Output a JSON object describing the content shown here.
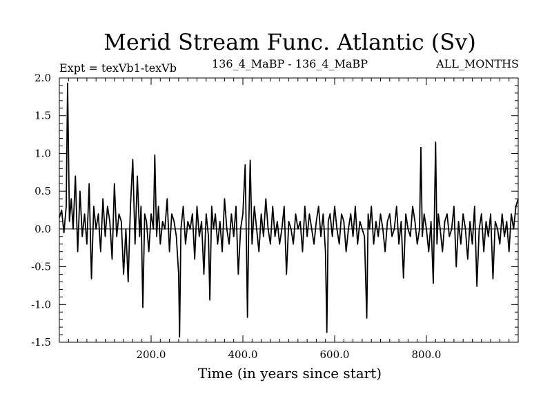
{
  "chart_data": {
    "type": "line",
    "title": "Merid Stream Func. Atlantic (Sv)",
    "subtitle_left": "Expt = texVb1-texVb",
    "subtitle_center": "136_4_MaBP - 136_4_MaBP",
    "subtitle_right": "ALL_MONTHS",
    "xlabel": "Time (in years since start)",
    "ylabel": "",
    "xlim": [
      0,
      1000
    ],
    "ylim": [
      -1.5,
      2.0
    ],
    "xticks": [
      200,
      400,
      600,
      800
    ],
    "xtick_labels": [
      "200.0",
      "400.0",
      "600.0",
      "800.0"
    ],
    "yticks": [
      -1.5,
      -1.0,
      -0.5,
      0.0,
      0.5,
      1.0,
      1.5,
      2.0
    ],
    "ytick_labels": [
      "-1.5",
      "-1.0",
      "-0.5",
      "0.0",
      "0.5",
      "1.0",
      "1.5",
      "2.0"
    ],
    "zero_line": true,
    "grid": false,
    "line_color": "#000000",
    "series": [
      {
        "x": [
          0,
          5,
          10,
          15,
          18,
          22,
          26,
          30,
          35,
          40,
          45,
          50,
          55,
          60,
          65,
          70,
          75,
          80,
          85,
          90,
          95,
          100,
          105,
          110,
          115,
          120,
          125,
          130,
          135,
          140,
          145,
          150,
          155,
          160,
          165,
          170,
          175,
          178,
          182,
          186,
          190,
          195,
          200,
          205,
          208,
          212,
          216,
          220,
          225,
          230,
          235,
          240,
          245,
          250,
          255,
          260,
          262,
          265,
          270,
          275,
          280,
          285,
          290,
          295,
          300,
          305,
          310,
          315,
          320,
          325,
          328,
          332,
          336,
          340,
          345,
          350,
          355,
          360,
          365,
          370,
          375,
          380,
          385,
          390,
          395,
          400,
          405,
          408,
          410,
          413,
          416,
          420,
          425,
          430,
          435,
          440,
          445,
          450,
          455,
          460,
          465,
          470,
          475,
          480,
          485,
          490,
          495,
          500,
          505,
          510,
          515,
          520,
          525,
          530,
          535,
          540,
          545,
          550,
          555,
          560,
          565,
          570,
          575,
          580,
          583,
          586,
          590,
          595,
          600,
          605,
          610,
          615,
          620,
          625,
          630,
          635,
          640,
          645,
          650,
          655,
          660,
          665,
          670,
          673,
          676,
          680,
          685,
          690,
          695,
          700,
          705,
          710,
          715,
          720,
          725,
          730,
          735,
          740,
          745,
          750,
          755,
          760,
          765,
          770,
          775,
          780,
          785,
          788,
          791,
          795,
          800,
          805,
          810,
          815,
          820,
          823,
          826,
          830,
          835,
          840,
          845,
          850,
          855,
          860,
          865,
          870,
          875,
          880,
          885,
          890,
          895,
          900,
          905,
          910,
          915,
          920,
          925,
          930,
          935,
          940,
          945,
          950,
          955,
          960,
          965,
          970,
          975,
          980,
          985,
          990,
          995,
          1000
        ],
        "y": [
          0.15,
          0.25,
          -0.05,
          0.3,
          1.93,
          0.1,
          0.4,
          0.0,
          0.7,
          -0.3,
          0.5,
          -0.1,
          0.2,
          -0.2,
          0.6,
          -0.66,
          0.3,
          0.0,
          0.2,
          -0.3,
          0.4,
          -0.1,
          0.3,
          0.1,
          -0.4,
          0.6,
          -0.1,
          0.2,
          0.1,
          -0.6,
          0.0,
          -0.7,
          0.3,
          0.92,
          -0.2,
          0.7,
          -0.1,
          0.3,
          -1.04,
          0.2,
          0.1,
          -0.3,
          0.2,
          0.0,
          0.98,
          -0.1,
          0.3,
          -0.2,
          0.1,
          0.0,
          0.4,
          -0.3,
          0.2,
          0.1,
          -0.1,
          -0.6,
          -1.43,
          0.0,
          0.3,
          -0.2,
          0.1,
          0.0,
          0.2,
          -0.4,
          0.3,
          -0.1,
          0.1,
          -0.6,
          0.2,
          -0.1,
          -0.94,
          0.3,
          0.0,
          0.2,
          -0.2,
          0.1,
          -0.3,
          0.4,
          0.0,
          -0.2,
          0.2,
          -0.1,
          0.3,
          -0.6,
          0.0,
          0.2,
          0.85,
          -0.3,
          -1.17,
          0.1,
          0.91,
          -0.2,
          0.3,
          0.0,
          -0.3,
          0.2,
          -0.1,
          0.4,
          0.0,
          -0.2,
          0.3,
          -0.1,
          0.1,
          -0.2,
          0.0,
          0.3,
          -0.6,
          0.1,
          0.0,
          -0.2,
          0.2,
          0.0,
          0.1,
          -0.3,
          0.3,
          -0.1,
          0.2,
          0.0,
          -0.2,
          0.1,
          0.3,
          -0.1,
          0.2,
          -0.3,
          -1.37,
          0.1,
          0.2,
          -0.1,
          0.3,
          0.0,
          -0.2,
          0.2,
          0.1,
          -0.3,
          0.0,
          0.2,
          -0.1,
          0.3,
          -0.2,
          0.1,
          0.0,
          -0.1,
          -1.18,
          0.2,
          0.0,
          0.3,
          -0.2,
          0.1,
          -0.1,
          0.2,
          0.0,
          -0.3,
          0.1,
          0.2,
          -0.1,
          0.0,
          0.3,
          -0.2,
          0.1,
          -0.65,
          0.2,
          0.0,
          -0.1,
          0.3,
          0.1,
          -0.2,
          0.0,
          1.08,
          -0.1,
          0.2,
          0.0,
          -0.3,
          0.1,
          -0.72,
          1.15,
          -0.2,
          0.2,
          0.0,
          -0.3,
          0.1,
          0.2,
          -0.1,
          0.0,
          0.3,
          -0.5,
          0.1,
          -0.2,
          0.2,
          0.0,
          -0.4,
          0.1,
          -0.2,
          0.3,
          -0.76,
          0.0,
          0.2,
          -0.3,
          0.1,
          -0.1,
          0.2,
          -0.66,
          0.1,
          0.0,
          -0.2,
          0.2,
          -0.1,
          0.1,
          -0.3,
          0.2,
          0.0,
          0.3,
          0.4
        ]
      }
    ]
  }
}
